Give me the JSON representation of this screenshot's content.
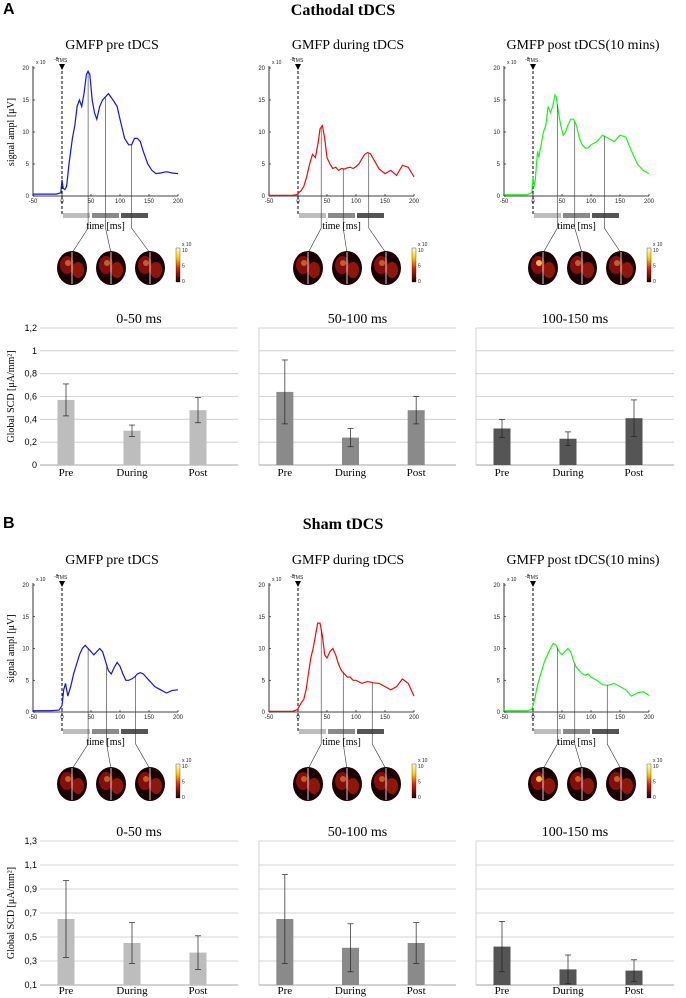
{
  "panel_labels": [
    "A",
    "B"
  ],
  "section_titles": [
    "Cathodal tDCS",
    "Sham tDCS"
  ],
  "gmfp_titles": [
    "GMFP pre tDCS",
    "GMFP during tDCS",
    "GMFP post tDCS(10 mins)"
  ],
  "gmfp_xlabel": "time [ms]",
  "gmfp_ylabel": "signal ampl [μV]",
  "tms_label": "TMS",
  "exp_label": "x 10",
  "exp_power": "-8",
  "gmfp_xticks": [
    "-50",
    "0",
    "50",
    "100",
    "150",
    "200"
  ],
  "gmfp_yticks": [
    "0",
    "5",
    "10",
    "15",
    "20"
  ],
  "colorbar_ticks": [
    "10",
    "5",
    "0"
  ],
  "colors": {
    "pre": "#1515d0",
    "during": "#e01010",
    "post": "#22ee22",
    "win1": "#bdbdbd",
    "win2": "#8a8a8a",
    "win3": "#555555"
  },
  "windows_ms": [
    [
      0,
      50
    ],
    [
      50,
      100
    ],
    [
      100,
      150
    ]
  ],
  "gmfp_curves": {
    "cathodal": [
      {
        "name": "pre",
        "t": [
          -50,
          -30,
          -10,
          -2,
          0,
          2,
          5,
          8,
          12,
          18,
          22,
          26,
          30,
          34,
          38,
          42,
          45,
          48,
          52,
          56,
          60,
          65,
          70,
          75,
          80,
          88,
          95,
          100,
          108,
          115,
          120,
          125,
          130,
          135,
          140,
          148,
          155,
          162,
          170,
          180,
          190,
          200
        ],
        "v": [
          0.3,
          0.3,
          0.3,
          0.5,
          2.5,
          1.2,
          1.0,
          1.5,
          5,
          9,
          11,
          14,
          15,
          14,
          16,
          19,
          19.5,
          19,
          15,
          13,
          12,
          14,
          15,
          15.5,
          16,
          15,
          14,
          12,
          9,
          8,
          8,
          9,
          9,
          8.5,
          7,
          5,
          4,
          3.5,
          3.6,
          3.8,
          3.6,
          3.5
        ]
      },
      {
        "name": "during",
        "t": [
          -50,
          -10,
          -2,
          0,
          2,
          5,
          10,
          15,
          20,
          25,
          30,
          35,
          38,
          42,
          46,
          50,
          55,
          60,
          65,
          70,
          75,
          80,
          85,
          90,
          95,
          100,
          105,
          110,
          115,
          120,
          125,
          130,
          140,
          150,
          160,
          170,
          180,
          190,
          200
        ],
        "v": [
          0.1,
          0.1,
          0.2,
          0.4,
          0.6,
          0.8,
          1.5,
          3,
          5,
          6.5,
          6,
          8.5,
          10.5,
          11,
          9,
          6,
          5,
          4.3,
          4.5,
          4,
          4.3,
          4.2,
          4.4,
          4.5,
          4.3,
          4.6,
          5,
          5.8,
          6.5,
          6.8,
          6.6,
          5.8,
          4.2,
          3.5,
          4,
          3.2,
          4.8,
          4.5,
          3
        ]
      },
      {
        "name": "post",
        "t": [
          -50,
          -10,
          -2,
          0,
          2,
          4,
          6,
          8,
          10,
          14,
          18,
          22,
          26,
          30,
          34,
          38,
          40,
          44,
          48,
          52,
          56,
          60,
          65,
          70,
          75,
          80,
          85,
          90,
          95,
          100,
          110,
          120,
          130,
          140,
          150,
          160,
          170,
          180,
          190,
          200
        ],
        "v": [
          0.2,
          0.2,
          0.5,
          3,
          1.5,
          2.5,
          5,
          7,
          6,
          8,
          10,
          11,
          14,
          13,
          14,
          15.8,
          15.5,
          13,
          11,
          9.5,
          10,
          11,
          12,
          12,
          11,
          9,
          8,
          7.5,
          7.5,
          8,
          8.5,
          9.5,
          9,
          8.5,
          9.5,
          9.2,
          7,
          5,
          4,
          3.5
        ]
      }
    ],
    "sham": [
      {
        "name": "pre",
        "t": [
          -50,
          -20,
          -5,
          0,
          3,
          6,
          10,
          15,
          20,
          25,
          30,
          35,
          40,
          45,
          50,
          55,
          60,
          65,
          70,
          75,
          80,
          85,
          90,
          95,
          100,
          105,
          110,
          115,
          120,
          125,
          130,
          135,
          140,
          145,
          150,
          155,
          160,
          170,
          180,
          190,
          200
        ],
        "v": [
          0.2,
          0.2,
          0.3,
          1,
          3.5,
          4.5,
          2.5,
          4,
          6,
          7.5,
          9,
          10,
          10.5,
          10,
          9.5,
          9,
          9.5,
          10,
          9.5,
          8,
          6.5,
          6,
          7,
          7.8,
          7.2,
          6,
          5,
          5,
          5.2,
          5.5,
          6,
          6.2,
          6,
          5.5,
          5,
          4.5,
          4,
          3.5,
          3,
          3.4,
          3.5
        ]
      },
      {
        "name": "during",
        "t": [
          -50,
          -10,
          -3,
          0,
          3,
          6,
          10,
          14,
          18,
          22,
          26,
          30,
          34,
          38,
          42,
          46,
          50,
          55,
          60,
          65,
          70,
          75,
          80,
          85,
          90,
          95,
          100,
          110,
          120,
          130,
          140,
          150,
          160,
          170,
          180,
          190,
          200
        ],
        "v": [
          0.1,
          0.1,
          0.3,
          0.5,
          1,
          1.5,
          2,
          3.5,
          6,
          8.5,
          10,
          12,
          14,
          14,
          12,
          9,
          8.5,
          9.5,
          10,
          9,
          7.5,
          6.5,
          6,
          5.5,
          5.5,
          5,
          5,
          4.5,
          4.8,
          4.6,
          4.5,
          4,
          3.5,
          4,
          5.2,
          4.5,
          2.5
        ]
      },
      {
        "name": "post",
        "t": [
          -50,
          -10,
          -2,
          0,
          3,
          6,
          10,
          15,
          20,
          25,
          30,
          35,
          40,
          45,
          50,
          55,
          60,
          65,
          70,
          75,
          80,
          85,
          90,
          95,
          100,
          110,
          120,
          130,
          140,
          150,
          160,
          170,
          180,
          190,
          200
        ],
        "v": [
          0.2,
          0.2,
          0.4,
          1,
          2,
          3.5,
          5,
          6.5,
          8,
          9,
          10,
          10.8,
          10.5,
          9.5,
          9,
          9.5,
          10,
          9.5,
          8,
          7,
          6.5,
          6,
          5.8,
          6,
          5.5,
          5,
          4.3,
          4.2,
          4.5,
          4,
          3.5,
          2.5,
          3,
          3.2,
          2.6
        ]
      }
    ]
  },
  "bar_panels": [
    {
      "title": "0-50 ms",
      "window_color": "#bdbdbd"
    },
    {
      "title": "50-100 ms",
      "window_color": "#8a8a8a"
    },
    {
      "title": "100-150 ms",
      "window_color": "#555555"
    }
  ],
  "chart_data": [
    {
      "type": "bar",
      "title": "0-50 ms",
      "group": "Cathodal tDCS",
      "categories": [
        "Pre",
        "During",
        "Post"
      ],
      "values": [
        0.57,
        0.3,
        0.48
      ],
      "errors": [
        0.14,
        0.05,
        0.11
      ],
      "ylabel": "Global SCD [μA/mm²]",
      "ylim": [
        0,
        1.2
      ],
      "yticks": [
        "0",
        "0,2",
        "0,4",
        "0,6",
        "0,8",
        "1",
        "1,2"
      ]
    },
    {
      "type": "bar",
      "title": "50-100 ms",
      "group": "Cathodal tDCS",
      "categories": [
        "Pre",
        "During",
        "Post"
      ],
      "values": [
        0.64,
        0.24,
        0.48
      ],
      "errors": [
        0.28,
        0.08,
        0.12
      ],
      "ylim": [
        0,
        1.2
      ],
      "yticks": [
        "0",
        "0,2",
        "0,4",
        "0,6",
        "0,8",
        "1",
        "1,2"
      ]
    },
    {
      "type": "bar",
      "title": "100-150 ms",
      "group": "Cathodal tDCS",
      "categories": [
        "Pre",
        "During",
        "Post"
      ],
      "values": [
        0.32,
        0.23,
        0.41
      ],
      "errors": [
        0.08,
        0.06,
        0.16
      ],
      "ylim": [
        0,
        1.2
      ],
      "yticks": [
        "0",
        "0,2",
        "0,4",
        "0,6",
        "0,8",
        "1",
        "1,2"
      ]
    },
    {
      "type": "bar",
      "title": "0-50 ms",
      "group": "Sham tDCS",
      "categories": [
        "Pre",
        "During",
        "Post"
      ],
      "values": [
        0.65,
        0.45,
        0.37
      ],
      "errors": [
        0.32,
        0.17,
        0.14
      ],
      "ylabel": "Global SCD [μA/mm²]",
      "ylim": [
        0.1,
        1.3
      ],
      "yticks": [
        "0,1",
        "0,3",
        "0,5",
        "0,7",
        "0,9",
        "1,1",
        "1,3"
      ]
    },
    {
      "type": "bar",
      "title": "50-100 ms",
      "group": "Sham tDCS",
      "categories": [
        "Pre",
        "During",
        "Post"
      ],
      "values": [
        0.65,
        0.41,
        0.45
      ],
      "errors": [
        0.37,
        0.2,
        0.17
      ],
      "ylim": [
        0.1,
        1.3
      ],
      "yticks": [
        "0,1",
        "0,3",
        "0,5",
        "0,7",
        "0,9",
        "1,1",
        "1,3"
      ]
    },
    {
      "type": "bar",
      "title": "100-150 ms",
      "group": "Sham tDCS",
      "categories": [
        "Pre",
        "During",
        "Post"
      ],
      "values": [
        0.42,
        0.23,
        0.22
      ],
      "errors": [
        0.21,
        0.12,
        0.09
      ],
      "ylim": [
        0.1,
        1.3
      ],
      "yticks": [
        "0,1",
        "0,3",
        "0,5",
        "0,7",
        "0,9",
        "1,1",
        "1,3"
      ]
    }
  ]
}
